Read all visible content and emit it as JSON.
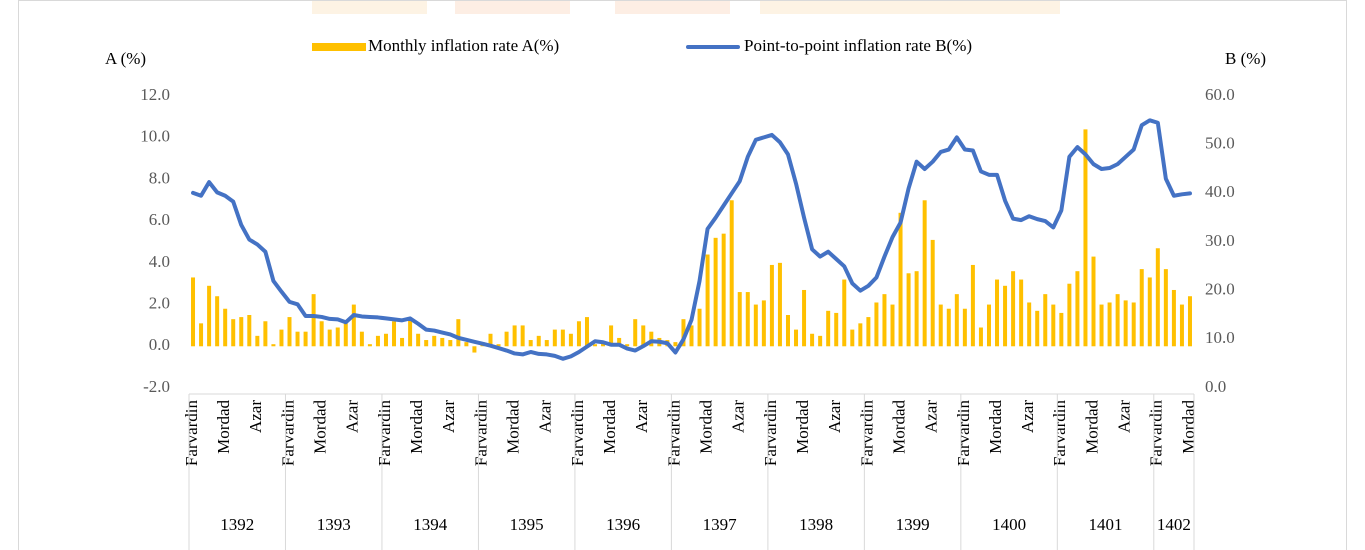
{
  "chart_data": {
    "type": "combo",
    "y_label": "A (%)",
    "y2_label": "B (%)",
    "categories": [
      "Farvardin",
      null,
      null,
      null,
      "Mordad",
      null,
      null,
      null,
      "Azar",
      null,
      null,
      null,
      "Farvardin",
      null,
      null,
      null,
      "Mordad",
      null,
      null,
      null,
      "Azar",
      null,
      null,
      null,
      "Farvardin",
      null,
      null,
      null,
      "Mordad",
      null,
      null,
      null,
      "Azar",
      null,
      null,
      null,
      "Farvardin",
      null,
      null,
      null,
      "Mordad",
      null,
      null,
      null,
      "Azar",
      null,
      null,
      null,
      "Farvardin",
      null,
      null,
      null,
      "Mordad",
      null,
      null,
      null,
      "Azar",
      null,
      null,
      null,
      "Farvardin",
      null,
      null,
      null,
      "Mordad",
      null,
      null,
      null,
      "Azar",
      null,
      null,
      null,
      "Farvardin",
      null,
      null,
      null,
      "Mordad",
      null,
      null,
      null,
      "Azar",
      null,
      null,
      null,
      "Farvardin",
      null,
      null,
      null,
      "Mordad",
      null,
      null,
      null,
      "Azar",
      null,
      null,
      null,
      "Farvardin",
      null,
      null,
      null,
      "Mordad",
      null,
      null,
      null,
      "Azar",
      null,
      null,
      null,
      "Farvardin",
      null,
      null,
      null,
      "Mordad",
      null,
      null,
      null,
      "Azar",
      null,
      null,
      null,
      "Farvardin",
      null,
      null,
      null,
      "Mordad"
    ],
    "years": [
      "1392",
      "1393",
      "1394",
      "1395",
      "1396",
      "1397",
      "1398",
      "1399",
      "1400",
      "1401",
      "1402"
    ],
    "series": [
      {
        "name": "Monthly inflation rate A(%)",
        "type": "bar",
        "color": "#ffc000",
        "values": [
          3.3,
          1.1,
          2.9,
          2.4,
          1.8,
          1.3,
          1.4,
          1.5,
          0.5,
          1.2,
          0.1,
          0.8,
          1.4,
          0.7,
          0.7,
          2.5,
          1.2,
          0.8,
          0.9,
          1.1,
          2.0,
          0.7,
          0.1,
          0.5,
          0.6,
          1.2,
          0.4,
          1.3,
          0.6,
          0.3,
          0.5,
          0.4,
          0.3,
          1.3,
          0.2,
          -0.3,
          0.2,
          0.6,
          0.1,
          0.7,
          1.0,
          1.0,
          0.3,
          0.5,
          0.3,
          0.8,
          0.8,
          0.6,
          1.2,
          1.4,
          0.1,
          0.2,
          1.0,
          0.4,
          0.1,
          1.3,
          1.0,
          0.7,
          0.4,
          0.3,
          0.2,
          1.3,
          1.0,
          1.8,
          4.4,
          5.2,
          5.4,
          7.0,
          2.6,
          2.6,
          2.0,
          2.2,
          3.9,
          4.0,
          1.5,
          0.8,
          2.7,
          0.6,
          0.5,
          1.7,
          1.6,
          3.2,
          0.8,
          1.1,
          1.4,
          2.1,
          2.5,
          2.0,
          6.4,
          3.5,
          3.6,
          7.0,
          5.1,
          2.0,
          1.8,
          2.5,
          1.8,
          3.9,
          0.9,
          2.0,
          3.2,
          2.9,
          3.6,
          3.2,
          2.1,
          1.7,
          2.5,
          2.0,
          1.6,
          3.0,
          3.6,
          10.4,
          4.3,
          2.0,
          2.1,
          2.5,
          2.2,
          2.1,
          3.7,
          3.3,
          4.7,
          3.7,
          2.7,
          2.0,
          2.4
        ]
      },
      {
        "name": "Point-to-point inflation rate B(%)",
        "type": "line",
        "axis": "y2",
        "color": "#4472c4",
        "values": [
          40.1,
          39.5,
          42.3,
          40.2,
          39.5,
          38.3,
          33.5,
          30.5,
          29.5,
          28,
          22,
          19.8,
          17.7,
          17.2,
          14.8,
          14.8,
          14.6,
          14.2,
          14.1,
          13.5,
          15,
          14.7,
          14.6,
          14.5,
          14.3,
          14.1,
          13.9,
          14.3,
          13.2,
          12,
          11.8,
          11.4,
          11,
          10.3,
          9.9,
          9.5,
          9.1,
          8.7,
          8.2,
          7.7,
          7.1,
          6.9,
          7.4,
          7,
          6.9,
          6.6,
          6,
          6.5,
          7.4,
          8.5,
          9.6,
          9.4,
          8.9,
          8.9,
          8.1,
          7.7,
          8.6,
          9.6,
          9.5,
          9.2,
          7.3,
          10,
          14,
          22,
          32.7,
          35,
          37.5,
          40,
          42.5,
          47.5,
          51,
          51.5,
          52,
          50.5,
          48,
          42,
          35,
          28.5,
          27,
          28,
          26.5,
          25,
          21.5,
          20,
          21,
          22.7,
          27,
          31,
          34,
          41,
          46.5,
          45,
          46.5,
          48.5,
          49,
          51.5,
          49,
          48.8,
          44.5,
          43.8,
          43.8,
          38.5,
          34.8,
          34.5,
          35.3,
          34.7,
          34.3,
          33,
          36.5,
          47.5,
          49.5,
          48,
          46,
          45,
          45.2,
          46,
          47.5,
          49,
          54,
          55,
          54.5,
          43,
          39.5,
          39.8,
          40
        ]
      }
    ],
    "ylim": [
      -2,
      12
    ],
    "yticks": [
      {
        "value": -2,
        "label": "-2.0"
      },
      {
        "value": 0,
        "label": "0.0"
      },
      {
        "value": 2,
        "label": "2.0"
      },
      {
        "value": 4,
        "label": "4.0"
      },
      {
        "value": 6,
        "label": "6.0"
      },
      {
        "value": 8,
        "label": "8.0"
      },
      {
        "value": 10,
        "label": "10.0"
      },
      {
        "value": 12,
        "label": "12.0"
      }
    ],
    "y2lim": [
      0,
      60
    ],
    "y2ticks": [
      {
        "value": 0,
        "label": "0.0"
      },
      {
        "value": 10,
        "label": "10.0"
      },
      {
        "value": 20,
        "label": "20.0"
      },
      {
        "value": 30,
        "label": "30.0"
      },
      {
        "value": 40,
        "label": "40.0"
      },
      {
        "value": 50,
        "label": "50.0"
      },
      {
        "value": 60,
        "label": "60.0"
      }
    ],
    "legend": "top",
    "grid": false
  }
}
